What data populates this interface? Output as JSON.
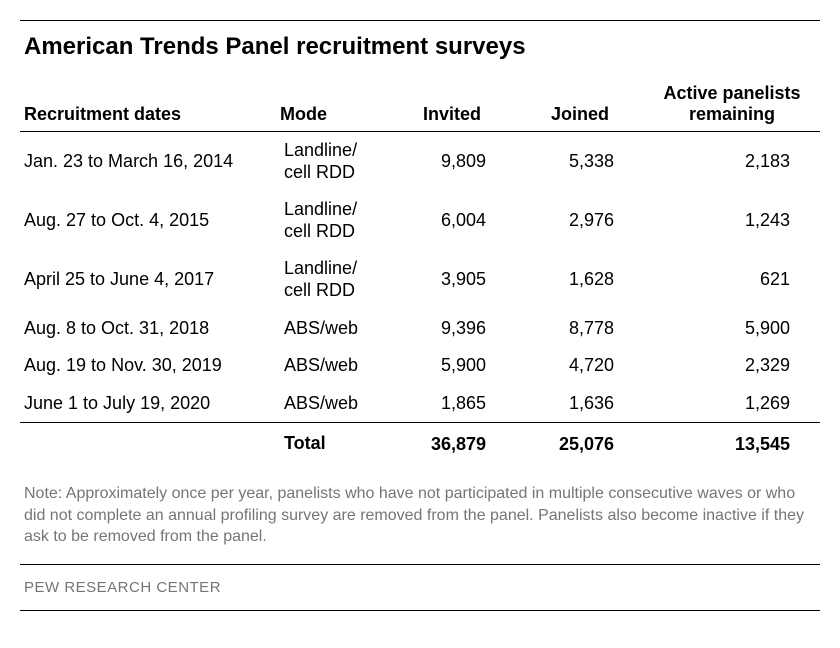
{
  "title": "American Trends Panel recruitment surveys",
  "columns": {
    "dates": "Recruitment dates",
    "mode": "Mode",
    "invited": "Invited",
    "joined": "Joined",
    "active": "Active panelists remaining"
  },
  "rows": [
    {
      "dates": "Jan. 23 to March 16, 2014",
      "mode": "Landline/ cell RDD",
      "invited": "9,809",
      "joined": "5,338",
      "active": "2,183"
    },
    {
      "dates": "Aug. 27 to Oct. 4, 2015",
      "mode": "Landline/ cell RDD",
      "invited": "6,004",
      "joined": "2,976",
      "active": "1,243"
    },
    {
      "dates": "April 25 to June 4, 2017",
      "mode": "Landline/ cell RDD",
      "invited": "3,905",
      "joined": "1,628",
      "active": "621"
    },
    {
      "dates": "Aug. 8 to Oct. 31, 2018",
      "mode": "ABS/web",
      "invited": "9,396",
      "joined": "8,778",
      "active": "5,900"
    },
    {
      "dates": "Aug. 19 to Nov. 30, 2019",
      "mode": "ABS/web",
      "invited": "5,900",
      "joined": "4,720",
      "active": "2,329"
    },
    {
      "dates": "June 1 to July 19, 2020",
      "mode": "ABS/web",
      "invited": "1,865",
      "joined": "1,636",
      "active": "1,269"
    }
  ],
  "total": {
    "label": "Total",
    "invited": "36,879",
    "joined": "25,076",
    "active": "13,545"
  },
  "note": "Note: Approximately once per year, panelists who have not participated in multiple consecutive waves or who did not complete an annual profiling survey are removed from the panel. Panelists also become inactive if they ask to be removed from the panel.",
  "source": "PEW RESEARCH CENTER"
}
